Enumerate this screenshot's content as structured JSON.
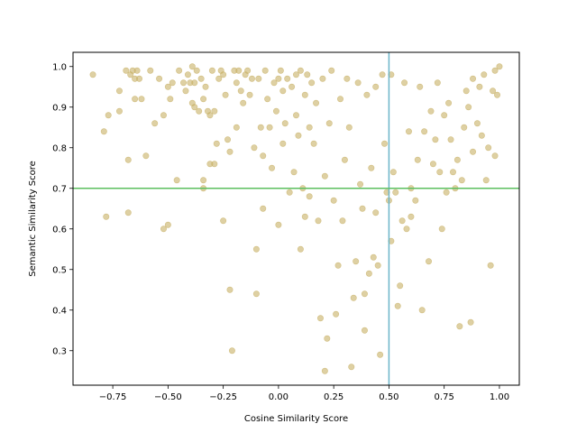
{
  "chart_data": {
    "type": "scatter",
    "title": "",
    "xlabel": "Cosine Similarity Score",
    "ylabel": "Semantic Similarity Score",
    "xlim": [
      -0.93,
      1.09
    ],
    "ylim": [
      0.215,
      1.035
    ],
    "xticks": [
      -0.75,
      -0.5,
      -0.25,
      0.0,
      0.25,
      0.5,
      0.75,
      1.0
    ],
    "xtick_labels": [
      "−0.75",
      "−0.50",
      "−0.25",
      "0.00",
      "0.25",
      "0.50",
      "0.75",
      "1.00"
    ],
    "yticks": [
      0.3,
      0.4,
      0.5,
      0.6,
      0.7,
      0.8,
      0.9,
      1.0
    ],
    "ytick_labels": [
      "0.3",
      "0.4",
      "0.5",
      "0.6",
      "0.7",
      "0.8",
      "0.9",
      "1.0"
    ],
    "grid": false,
    "marker_color": "#c8b066",
    "threshold_lines": [
      {
        "orientation": "vertical",
        "value": 0.5,
        "color": "#6bb5c9"
      },
      {
        "orientation": "horizontal",
        "value": 0.7,
        "color": "#5cbf5f"
      }
    ],
    "points": [
      [
        -0.84,
        0.98
      ],
      [
        -0.79,
        0.84
      ],
      [
        -0.78,
        0.63
      ],
      [
        -0.77,
        0.88
      ],
      [
        -0.72,
        0.89
      ],
      [
        -0.72,
        0.94
      ],
      [
        -0.69,
        0.99
      ],
      [
        -0.68,
        0.77
      ],
      [
        -0.68,
        0.64
      ],
      [
        -0.67,
        0.98
      ],
      [
        -0.66,
        0.99
      ],
      [
        -0.65,
        0.97
      ],
      [
        -0.65,
        0.92
      ],
      [
        -0.64,
        0.99
      ],
      [
        -0.63,
        0.97
      ],
      [
        -0.62,
        0.92
      ],
      [
        -0.6,
        0.78
      ],
      [
        -0.58,
        0.99
      ],
      [
        -0.56,
        0.86
      ],
      [
        -0.54,
        0.97
      ],
      [
        -0.52,
        0.88
      ],
      [
        -0.52,
        0.6
      ],
      [
        -0.5,
        0.61
      ],
      [
        -0.5,
        0.95
      ],
      [
        -0.49,
        0.92
      ],
      [
        -0.48,
        0.96
      ],
      [
        -0.46,
        0.72
      ],
      [
        -0.45,
        0.99
      ],
      [
        -0.43,
        0.96
      ],
      [
        -0.42,
        0.94
      ],
      [
        -0.41,
        0.98
      ],
      [
        -0.4,
        0.96
      ],
      [
        -0.39,
        1.0
      ],
      [
        -0.39,
        0.91
      ],
      [
        -0.38,
        0.96
      ],
      [
        -0.38,
        0.9
      ],
      [
        -0.37,
        0.99
      ],
      [
        -0.36,
        0.89
      ],
      [
        -0.35,
        0.97
      ],
      [
        -0.34,
        0.92
      ],
      [
        -0.34,
        0.72
      ],
      [
        -0.34,
        0.7
      ],
      [
        -0.33,
        0.95
      ],
      [
        -0.32,
        0.89
      ],
      [
        -0.31,
        0.88
      ],
      [
        -0.31,
        0.76
      ],
      [
        -0.3,
        0.99
      ],
      [
        -0.29,
        0.89
      ],
      [
        -0.29,
        0.76
      ],
      [
        -0.28,
        0.81
      ],
      [
        -0.27,
        0.97
      ],
      [
        -0.26,
        0.99
      ],
      [
        -0.25,
        0.98
      ],
      [
        -0.25,
        0.62
      ],
      [
        -0.24,
        0.93
      ],
      [
        -0.23,
        0.82
      ],
      [
        -0.22,
        0.79
      ],
      [
        -0.22,
        0.45
      ],
      [
        -0.21,
        0.3
      ],
      [
        -0.2,
        0.99
      ],
      [
        -0.19,
        0.96
      ],
      [
        -0.19,
        0.85
      ],
      [
        -0.18,
        0.99
      ],
      [
        -0.17,
        0.94
      ],
      [
        -0.16,
        0.91
      ],
      [
        -0.15,
        0.98
      ],
      [
        -0.14,
        0.99
      ],
      [
        -0.13,
        0.93
      ],
      [
        -0.12,
        0.97
      ],
      [
        -0.11,
        0.8
      ],
      [
        -0.1,
        0.55
      ],
      [
        -0.1,
        0.44
      ],
      [
        -0.09,
        0.97
      ],
      [
        -0.08,
        0.85
      ],
      [
        -0.07,
        0.78
      ],
      [
        -0.07,
        0.65
      ],
      [
        -0.06,
        0.99
      ],
      [
        -0.05,
        0.92
      ],
      [
        -0.04,
        0.85
      ],
      [
        -0.03,
        0.75
      ],
      [
        -0.02,
        0.96
      ],
      [
        -0.01,
        0.89
      ],
      [
        0.0,
        0.97
      ],
      [
        0.0,
        0.61
      ],
      [
        0.01,
        0.99
      ],
      [
        0.02,
        0.94
      ],
      [
        0.02,
        0.81
      ],
      [
        0.03,
        0.86
      ],
      [
        0.04,
        0.97
      ],
      [
        0.05,
        0.69
      ],
      [
        0.06,
        0.95
      ],
      [
        0.07,
        0.74
      ],
      [
        0.08,
        0.98
      ],
      [
        0.08,
        0.88
      ],
      [
        0.09,
        0.83
      ],
      [
        0.1,
        0.99
      ],
      [
        0.1,
        0.55
      ],
      [
        0.11,
        0.7
      ],
      [
        0.12,
        0.93
      ],
      [
        0.12,
        0.63
      ],
      [
        0.13,
        0.98
      ],
      [
        0.14,
        0.85
      ],
      [
        0.14,
        0.68
      ],
      [
        0.15,
        0.96
      ],
      [
        0.16,
        0.81
      ],
      [
        0.17,
        0.91
      ],
      [
        0.18,
        0.62
      ],
      [
        0.19,
        0.38
      ],
      [
        0.2,
        0.97
      ],
      [
        0.21,
        0.73
      ],
      [
        0.21,
        0.25
      ],
      [
        0.22,
        0.33
      ],
      [
        0.23,
        0.86
      ],
      [
        0.24,
        0.99
      ],
      [
        0.25,
        0.67
      ],
      [
        0.26,
        0.39
      ],
      [
        0.27,
        0.51
      ],
      [
        0.28,
        0.92
      ],
      [
        0.29,
        0.62
      ],
      [
        0.3,
        0.77
      ],
      [
        0.31,
        0.97
      ],
      [
        0.32,
        0.85
      ],
      [
        0.33,
        0.26
      ],
      [
        0.34,
        0.43
      ],
      [
        0.35,
        0.52
      ],
      [
        0.36,
        0.96
      ],
      [
        0.37,
        0.71
      ],
      [
        0.38,
        0.65
      ],
      [
        0.39,
        0.44
      ],
      [
        0.39,
        0.35
      ],
      [
        0.4,
        0.93
      ],
      [
        0.41,
        0.49
      ],
      [
        0.42,
        0.75
      ],
      [
        0.43,
        0.53
      ],
      [
        0.44,
        0.95
      ],
      [
        0.44,
        0.64
      ],
      [
        0.45,
        0.51
      ],
      [
        0.46,
        0.29
      ],
      [
        0.47,
        0.98
      ],
      [
        0.48,
        0.81
      ],
      [
        0.49,
        0.69
      ],
      [
        0.5,
        0.67
      ],
      [
        0.51,
        0.98
      ],
      [
        0.51,
        0.57
      ],
      [
        0.52,
        0.74
      ],
      [
        0.53,
        0.69
      ],
      [
        0.54,
        0.41
      ],
      [
        0.55,
        0.46
      ],
      [
        0.56,
        0.62
      ],
      [
        0.57,
        0.96
      ],
      [
        0.58,
        0.6
      ],
      [
        0.59,
        0.84
      ],
      [
        0.6,
        0.63
      ],
      [
        0.6,
        0.7
      ],
      [
        0.62,
        0.67
      ],
      [
        0.63,
        0.77
      ],
      [
        0.64,
        0.95
      ],
      [
        0.65,
        0.4
      ],
      [
        0.66,
        0.84
      ],
      [
        0.68,
        0.52
      ],
      [
        0.69,
        0.89
      ],
      [
        0.7,
        0.76
      ],
      [
        0.71,
        0.82
      ],
      [
        0.72,
        0.96
      ],
      [
        0.73,
        0.74
      ],
      [
        0.74,
        0.6
      ],
      [
        0.75,
        0.88
      ],
      [
        0.76,
        0.69
      ],
      [
        0.77,
        0.91
      ],
      [
        0.78,
        0.82
      ],
      [
        0.79,
        0.74
      ],
      [
        0.8,
        0.7
      ],
      [
        0.81,
        0.77
      ],
      [
        0.82,
        0.36
      ],
      [
        0.83,
        0.72
      ],
      [
        0.84,
        0.85
      ],
      [
        0.85,
        0.94
      ],
      [
        0.86,
        0.9
      ],
      [
        0.87,
        0.37
      ],
      [
        0.88,
        0.79
      ],
      [
        0.88,
        0.97
      ],
      [
        0.9,
        0.86
      ],
      [
        0.91,
        0.95
      ],
      [
        0.92,
        0.83
      ],
      [
        0.93,
        0.98
      ],
      [
        0.94,
        0.72
      ],
      [
        0.95,
        0.8
      ],
      [
        0.96,
        0.51
      ],
      [
        0.97,
        0.94
      ],
      [
        0.98,
        0.78
      ],
      [
        0.98,
        0.99
      ],
      [
        0.99,
        0.93
      ],
      [
        1.0,
        1.0
      ]
    ]
  }
}
